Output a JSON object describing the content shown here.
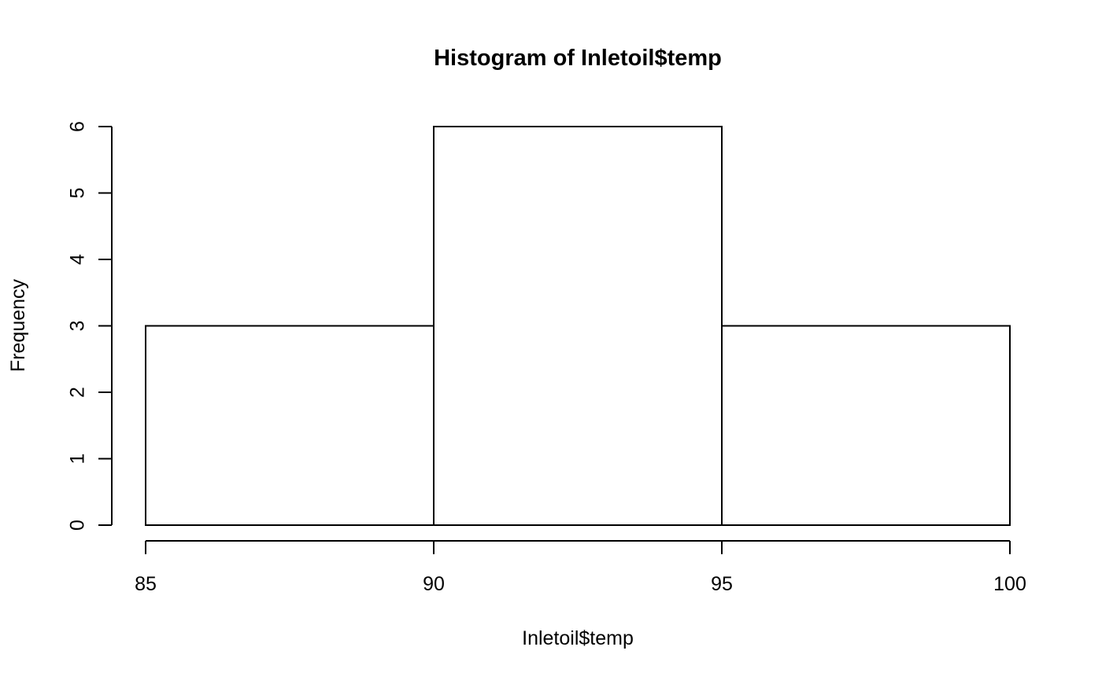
{
  "chart_data": {
    "type": "bar",
    "title": "Histogram of Inletoil$temp",
    "xlabel": "Inletoil$temp",
    "ylabel": "Frequency",
    "bins": [
      {
        "from": 85,
        "to": 90,
        "count": 3
      },
      {
        "from": 90,
        "to": 95,
        "count": 6
      },
      {
        "from": 95,
        "to": 100,
        "count": 3
      }
    ],
    "xlim": [
      85,
      100
    ],
    "ylim": [
      0,
      6
    ],
    "x_ticks": [
      "85",
      "90",
      "95",
      "100"
    ],
    "y_ticks": [
      "0",
      "1",
      "2",
      "3",
      "4",
      "5",
      "6"
    ],
    "grid": false,
    "legend": "none",
    "colors": {
      "bar_fill": "#ffffff",
      "bar_stroke": "#000000",
      "axis": "#000000"
    }
  }
}
